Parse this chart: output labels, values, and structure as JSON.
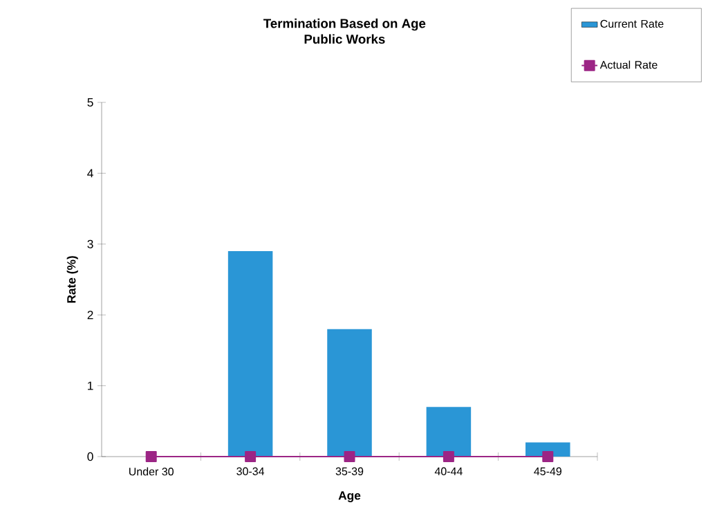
{
  "chart_data": {
    "type": "bar",
    "title": "Termination Based on Age\nPublic Works",
    "xlabel": "Age",
    "ylabel": "Rate (%)",
    "categories": [
      "Under 30",
      "30-34",
      "35-39",
      "40-44",
      "45-49"
    ],
    "series": [
      {
        "name": "Current Rate",
        "color": "#2a96d6",
        "values": [
          0,
          2.9,
          1.8,
          0.7,
          0.2
        ]
      },
      {
        "name": "Actual Rate",
        "type": "line",
        "color": "#9c2585",
        "marker": "square",
        "line_style": "solid",
        "values": [
          0,
          0,
          0,
          0,
          0
        ]
      }
    ],
    "ylim": [
      0,
      5
    ],
    "yticks": [
      0,
      1,
      2,
      3,
      4,
      5
    ],
    "grid": false,
    "legend": "top right"
  }
}
